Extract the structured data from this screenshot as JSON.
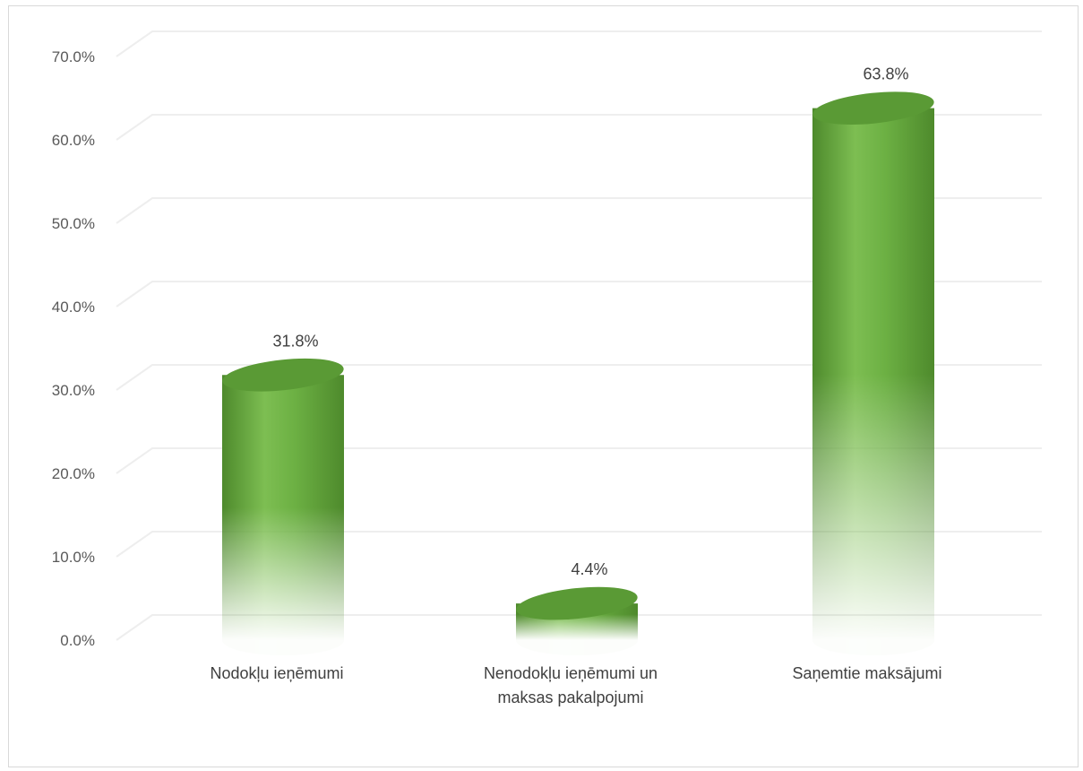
{
  "chart_data": {
    "type": "bar",
    "title": "",
    "xlabel": "",
    "ylabel": "",
    "categories": [
      [
        "Nodokļu ieņēmumi"
      ],
      [
        "Nenodokļu ieņēmumi un",
        "maksas pakalpojumi"
      ],
      [
        "Saņemtie maksājumi"
      ]
    ],
    "values": [
      31.8,
      4.4,
      63.8
    ],
    "data_labels": [
      "31.8%",
      "4.4%",
      "63.8%"
    ],
    "y_ticks": [
      "0.0%",
      "10.0%",
      "20.0%",
      "30.0%",
      "40.0%",
      "50.0%",
      "60.0%",
      "70.0%"
    ],
    "ylim": [
      0,
      70
    ],
    "grid": true,
    "legend": "none",
    "bar_style": "3d-cylinder-gradient-fade",
    "colors": {
      "bar_dark": "#4e8a2c",
      "bar_mid": "#6cb043",
      "bar_light": "#7dbe52",
      "top_face": "#5a9a35",
      "gridline": "#eeeeee"
    }
  }
}
